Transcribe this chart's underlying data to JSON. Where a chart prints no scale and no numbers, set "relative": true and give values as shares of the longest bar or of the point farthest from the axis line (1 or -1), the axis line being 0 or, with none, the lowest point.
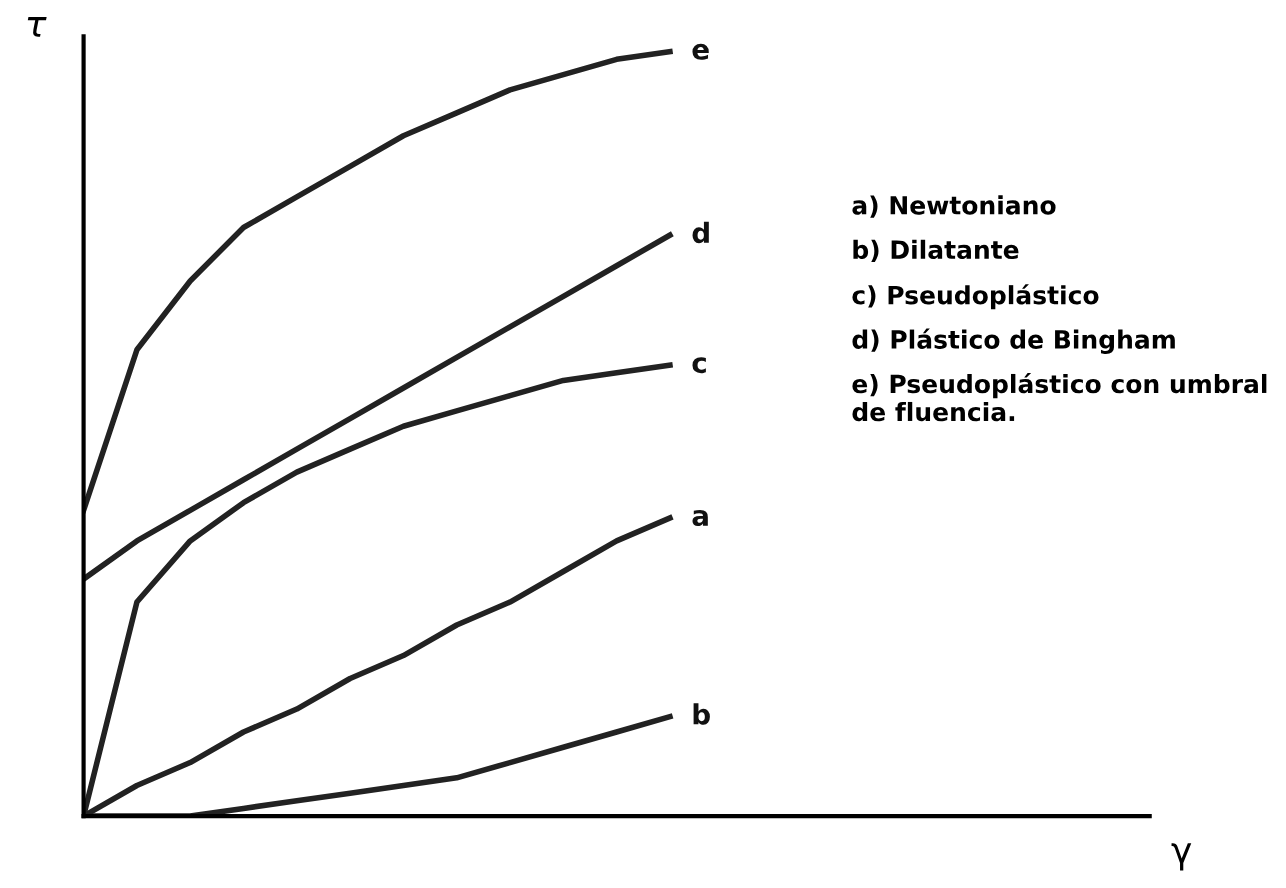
{
  "chart_data": {
    "type": "line",
    "relative": true,
    "xlabel": "γ",
    "ylabel": "τ",
    "categories": [
      null,
      null,
      null,
      null,
      null,
      null,
      null,
      null,
      null,
      null,
      null,
      null,
      null,
      null,
      null,
      null,
      null,
      null,
      null,
      null,
      null
    ],
    "series": [
      {
        "name": "a",
        "color": "#222222",
        "values": [
          0,
          0.04,
          0.07,
          0.11,
          0.14,
          0.18,
          0.21,
          0.25,
          0.28,
          0.32,
          0.36,
          0.39,
          null,
          null,
          null,
          null,
          null,
          null,
          null,
          null,
          null
        ]
      },
      {
        "name": "b",
        "color": "#222222",
        "values": [
          0,
          0.0,
          0.0,
          0.01,
          0.02,
          0.03,
          0.04,
          0.05,
          0.07,
          0.09,
          0.11,
          0.13,
          null,
          null,
          null,
          null,
          null,
          null,
          null,
          null,
          null
        ]
      },
      {
        "name": "c",
        "color": "#222222",
        "values": [
          0,
          0.28,
          0.36,
          0.41,
          0.45,
          0.48,
          0.51,
          0.53,
          0.55,
          0.57,
          0.58,
          0.59,
          null,
          null,
          null,
          null,
          null,
          null,
          null,
          null,
          null
        ]
      },
      {
        "name": "d",
        "color": "#222222",
        "values": [
          0.31,
          0.36,
          0.4,
          0.44,
          0.48,
          0.52,
          0.56,
          0.6,
          0.64,
          0.68,
          0.72,
          0.76,
          null,
          null,
          null,
          null,
          null,
          null,
          null,
          null,
          null
        ]
      },
      {
        "name": "e",
        "color": "#222222",
        "values": [
          0.4,
          0.61,
          0.7,
          0.77,
          0.81,
          0.85,
          0.89,
          0.92,
          0.95,
          0.97,
          0.99,
          1,
          null,
          null,
          null,
          null,
          null,
          null,
          null,
          null,
          null
        ]
      }
    ],
    "annotations": [
      "a) Newtoniano",
      "b) Dilatante",
      "c) Pseudoplástico",
      "d) Plástico de Bingham",
      "e) Pseudoplástico con umbral de fluencia."
    ],
    "marker": "none",
    "line_style": "solid",
    "tick_labels": false
  }
}
